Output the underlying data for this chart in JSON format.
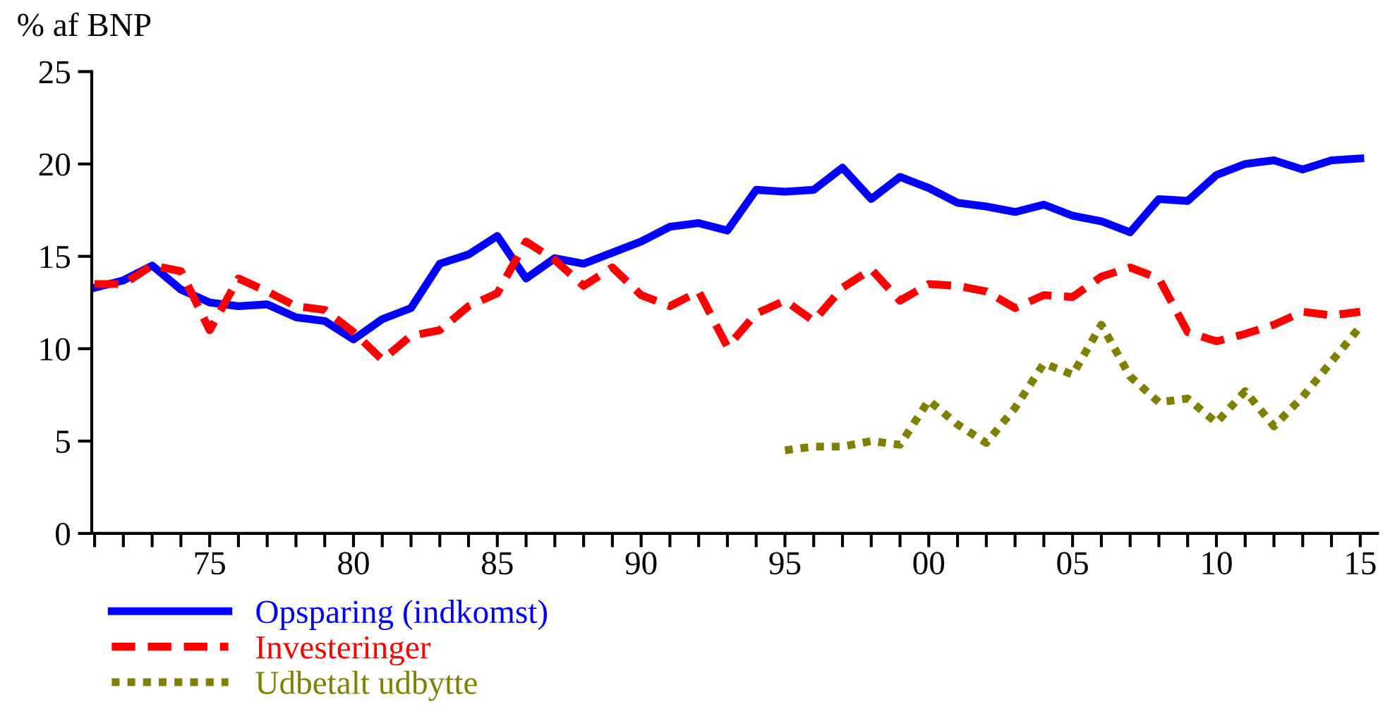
{
  "chart_data": {
    "type": "line",
    "ylabel": "% af BNP",
    "x": [
      1971,
      1972,
      1973,
      1974,
      1975,
      1976,
      1977,
      1978,
      1979,
      1980,
      1981,
      1982,
      1983,
      1984,
      1985,
      1986,
      1987,
      1988,
      1989,
      1990,
      1991,
      1992,
      1993,
      1994,
      1995,
      1996,
      1997,
      1998,
      1999,
      2000,
      2001,
      2002,
      2003,
      2004,
      2005,
      2006,
      2007,
      2008,
      2009,
      2010,
      2011,
      2012,
      2013,
      2014,
      2015
    ],
    "series": [
      {
        "name": "Opsparing (indkomst)",
        "color": "#0000ff",
        "line_style": "solid",
        "values": [
          13.3,
          13.7,
          14.5,
          13.2,
          12.5,
          12.3,
          12.4,
          11.7,
          11.5,
          10.5,
          11.6,
          12.2,
          14.6,
          15.1,
          16.1,
          13.8,
          14.9,
          14.6,
          15.2,
          15.8,
          16.6,
          16.8,
          16.4,
          18.6,
          18.5,
          18.6,
          19.8,
          18.1,
          19.3,
          18.7,
          17.9,
          17.7,
          17.4,
          17.8,
          17.2,
          16.9,
          16.3,
          18.1,
          18.0,
          19.4,
          20.0,
          20.2,
          19.7,
          20.2,
          20.3
        ]
      },
      {
        "name": "Investeringer",
        "color": "#ff0000",
        "line_style": "dashed",
        "values": [
          13.5,
          13.5,
          14.5,
          14.2,
          11.0,
          13.8,
          13.1,
          12.3,
          12.1,
          10.9,
          9.4,
          10.7,
          11.0,
          12.3,
          13.0,
          15.8,
          14.8,
          13.4,
          14.4,
          12.9,
          12.3,
          13.1,
          10.1,
          11.9,
          12.6,
          11.5,
          13.3,
          14.3,
          12.6,
          13.5,
          13.4,
          13.1,
          12.2,
          12.9,
          12.8,
          13.9,
          14.4,
          13.8,
          10.9,
          10.4,
          10.8,
          11.3,
          12.0,
          11.8,
          12.0
        ]
      },
      {
        "name": "Udbetalt udbytte",
        "color": "#808000",
        "line_style": "dotted",
        "values": [
          null,
          null,
          null,
          null,
          null,
          null,
          null,
          null,
          null,
          null,
          null,
          null,
          null,
          null,
          null,
          null,
          null,
          null,
          null,
          null,
          null,
          null,
          null,
          null,
          4.5,
          4.7,
          4.7,
          5.0,
          4.8,
          7.2,
          5.9,
          4.9,
          6.8,
          9.2,
          8.6,
          11.3,
          8.5,
          7.1,
          7.3,
          6.0,
          7.7,
          5.8,
          7.4,
          9.3,
          11.2
        ]
      }
    ],
    "xlim": [
      1970.9,
      2015.6
    ],
    "xticks": [
      {
        "value": 1971,
        "label": null
      },
      {
        "value": 1972,
        "label": null
      },
      {
        "value": 1973,
        "label": null
      },
      {
        "value": 1974,
        "label": null
      },
      {
        "value": 1975,
        "label": "75"
      },
      {
        "value": 1976,
        "label": null
      },
      {
        "value": 1977,
        "label": null
      },
      {
        "value": 1978,
        "label": null
      },
      {
        "value": 1979,
        "label": null
      },
      {
        "value": 1980,
        "label": "80"
      },
      {
        "value": 1981,
        "label": null
      },
      {
        "value": 1982,
        "label": null
      },
      {
        "value": 1983,
        "label": null
      },
      {
        "value": 1984,
        "label": null
      },
      {
        "value": 1985,
        "label": "85"
      },
      {
        "value": 1986,
        "label": null
      },
      {
        "value": 1987,
        "label": null
      },
      {
        "value": 1988,
        "label": null
      },
      {
        "value": 1989,
        "label": null
      },
      {
        "value": 1990,
        "label": "90"
      },
      {
        "value": 1991,
        "label": null
      },
      {
        "value": 1992,
        "label": null
      },
      {
        "value": 1993,
        "label": null
      },
      {
        "value": 1994,
        "label": null
      },
      {
        "value": 1995,
        "label": "95"
      },
      {
        "value": 1996,
        "label": null
      },
      {
        "value": 1997,
        "label": null
      },
      {
        "value": 1998,
        "label": null
      },
      {
        "value": 1999,
        "label": null
      },
      {
        "value": 2000,
        "label": "00"
      },
      {
        "value": 2001,
        "label": null
      },
      {
        "value": 2002,
        "label": null
      },
      {
        "value": 2003,
        "label": null
      },
      {
        "value": 2004,
        "label": null
      },
      {
        "value": 2005,
        "label": "05"
      },
      {
        "value": 2006,
        "label": null
      },
      {
        "value": 2007,
        "label": null
      },
      {
        "value": 2008,
        "label": null
      },
      {
        "value": 2009,
        "label": null
      },
      {
        "value": 2010,
        "label": "10"
      },
      {
        "value": 2011,
        "label": null
      },
      {
        "value": 2012,
        "label": null
      },
      {
        "value": 2013,
        "label": null
      },
      {
        "value": 2014,
        "label": null
      },
      {
        "value": 2015,
        "label": "15"
      }
    ],
    "ylim": [
      0,
      25
    ],
    "yticks": [
      0,
      5,
      10,
      15,
      20,
      25
    ],
    "grid": false,
    "legend": "bottom left",
    "marker": "none"
  }
}
